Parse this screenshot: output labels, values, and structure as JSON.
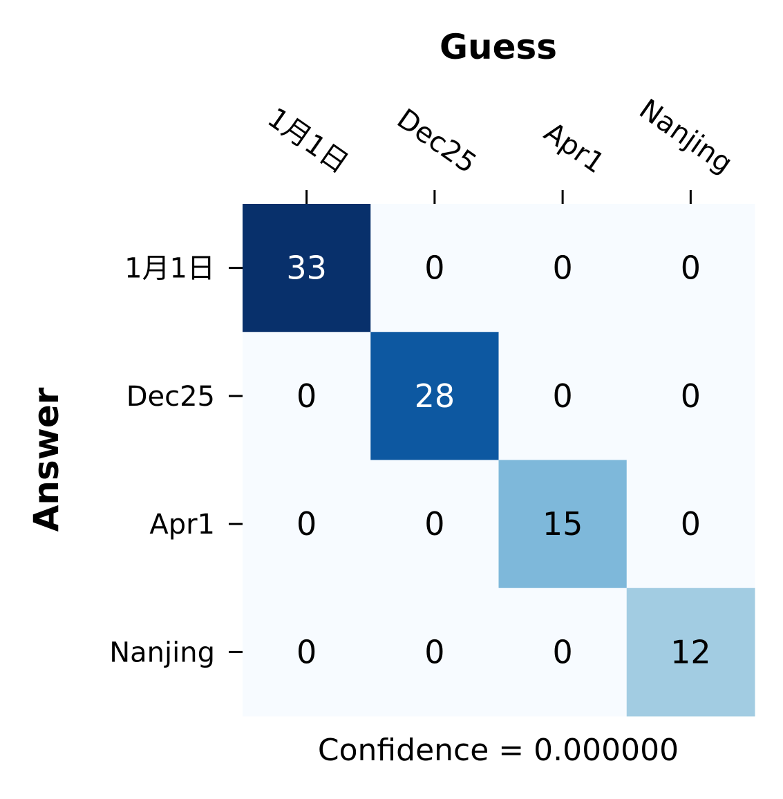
{
  "chart_data": {
    "type": "heatmap",
    "title": "Guess",
    "xlabel": "Guess",
    "ylabel": "Answer",
    "caption": "Confidence = 0.000000",
    "x_categories": [
      "1月1日",
      "Dec25",
      "Apr1",
      "Nanjing"
    ],
    "y_categories": [
      "1月1日",
      "Dec25",
      "Apr1",
      "Nanjing"
    ],
    "values": [
      [
        33,
        0,
        0,
        0
      ],
      [
        0,
        28,
        0,
        0
      ],
      [
        0,
        0,
        15,
        0
      ],
      [
        0,
        0,
        0,
        12
      ]
    ],
    "colormap": "Blues",
    "vmin": 0,
    "vmax": 33,
    "colors": {
      "min": "#f7fbff",
      "max": "#08306b",
      "text_dark": "#000000",
      "text_light": "#ffffff"
    },
    "x_axis_position": "top",
    "grid": false,
    "colorbar": false
  }
}
